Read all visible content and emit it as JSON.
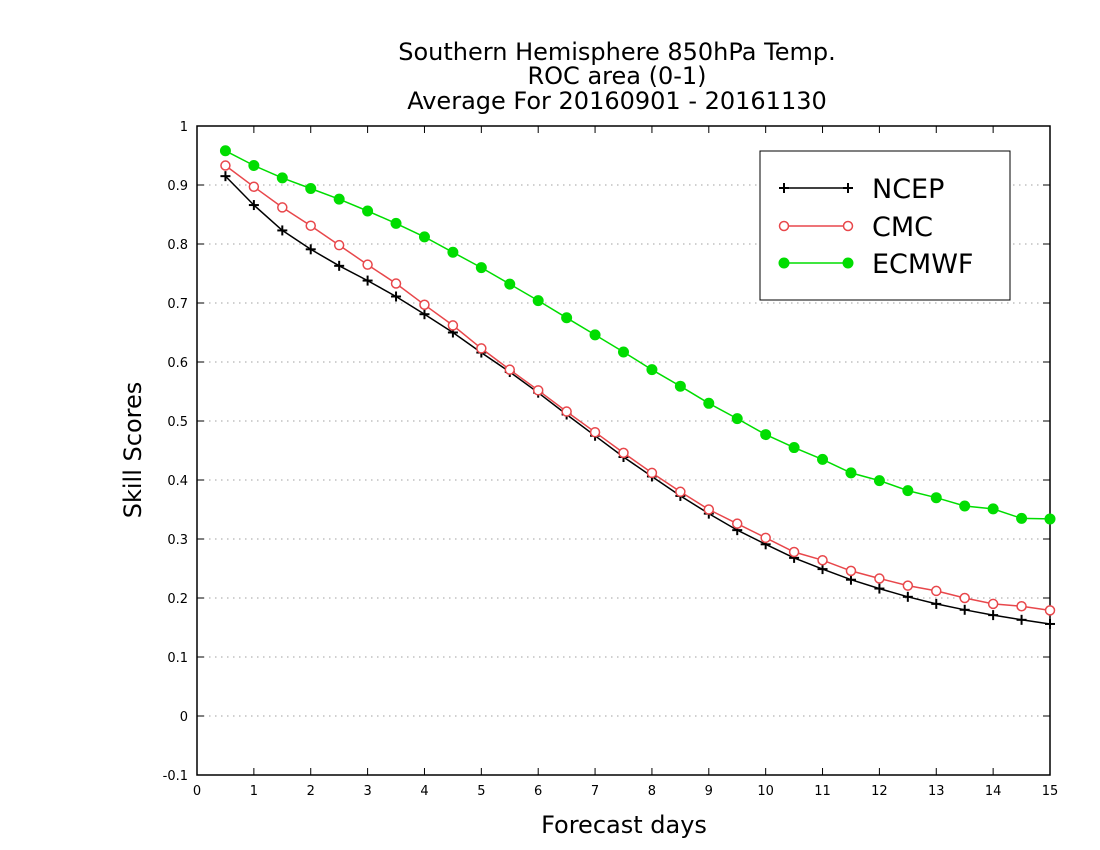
{
  "chart_data": {
    "type": "line",
    "title_lines": [
      "Southern Hemisphere 850hPa Temp.",
      "ROC area (0-1)",
      "Average For 20160901 - 20161130"
    ],
    "xlabel": "Forecast days",
    "ylabel": "Skill Scores",
    "xlim": [
      0,
      15
    ],
    "ylim": [
      -0.1,
      1
    ],
    "xticks": [
      0,
      1,
      2,
      3,
      4,
      5,
      6,
      7,
      8,
      9,
      10,
      11,
      12,
      13,
      14,
      15
    ],
    "yticks": [
      -0.1,
      0,
      0.1,
      0.2,
      0.3,
      0.4,
      0.5,
      0.6,
      0.7,
      0.8,
      0.9,
      1
    ],
    "ytick_labels": [
      "-0.1",
      "0",
      "0.1",
      "0.2",
      "0.3",
      "0.4",
      "0.5",
      "0.6",
      "0.7",
      "0.8",
      "0.9",
      "1"
    ],
    "grid": "horizontal dotted",
    "legend_position": "top-right",
    "x": [
      0.5,
      1,
      1.5,
      2,
      2.5,
      3,
      3.5,
      4,
      4.5,
      5,
      5.5,
      6,
      6.5,
      7,
      7.5,
      8,
      8.5,
      9,
      9.5,
      10,
      10.5,
      11,
      11.5,
      12,
      12.5,
      13,
      13.5,
      14,
      14.5,
      15
    ],
    "series": [
      {
        "name": "NCEP",
        "color": "#000000",
        "marker": "plus",
        "values": [
          0.915,
          0.866,
          0.823,
          0.791,
          0.763,
          0.738,
          0.711,
          0.681,
          0.65,
          0.616,
          0.583,
          0.548,
          0.511,
          0.475,
          0.439,
          0.406,
          0.373,
          0.343,
          0.315,
          0.291,
          0.268,
          0.249,
          0.231,
          0.216,
          0.202,
          0.19,
          0.18,
          0.171,
          0.163,
          0.156
        ]
      },
      {
        "name": "CMC",
        "color": "#e8474b",
        "marker": "open-circle",
        "values": [
          0.933,
          0.897,
          0.862,
          0.831,
          0.798,
          0.765,
          0.733,
          0.697,
          0.662,
          0.623,
          0.587,
          0.552,
          0.516,
          0.481,
          0.446,
          0.412,
          0.38,
          0.35,
          0.326,
          0.302,
          0.278,
          0.264,
          0.246,
          0.233,
          0.221,
          0.212,
          0.2,
          0.19,
          0.186,
          0.179
        ]
      },
      {
        "name": "ECMWF",
        "color": "#00dd00",
        "marker": "filled-circle",
        "values": [
          0.958,
          0.933,
          0.912,
          0.894,
          0.876,
          0.856,
          0.835,
          0.812,
          0.786,
          0.76,
          0.732,
          0.704,
          0.675,
          0.646,
          0.617,
          0.587,
          0.559,
          0.53,
          0.504,
          0.477,
          0.455,
          0.435,
          0.412,
          0.399,
          0.382,
          0.37,
          0.356,
          0.351,
          0.335,
          0.334
        ]
      }
    ]
  }
}
